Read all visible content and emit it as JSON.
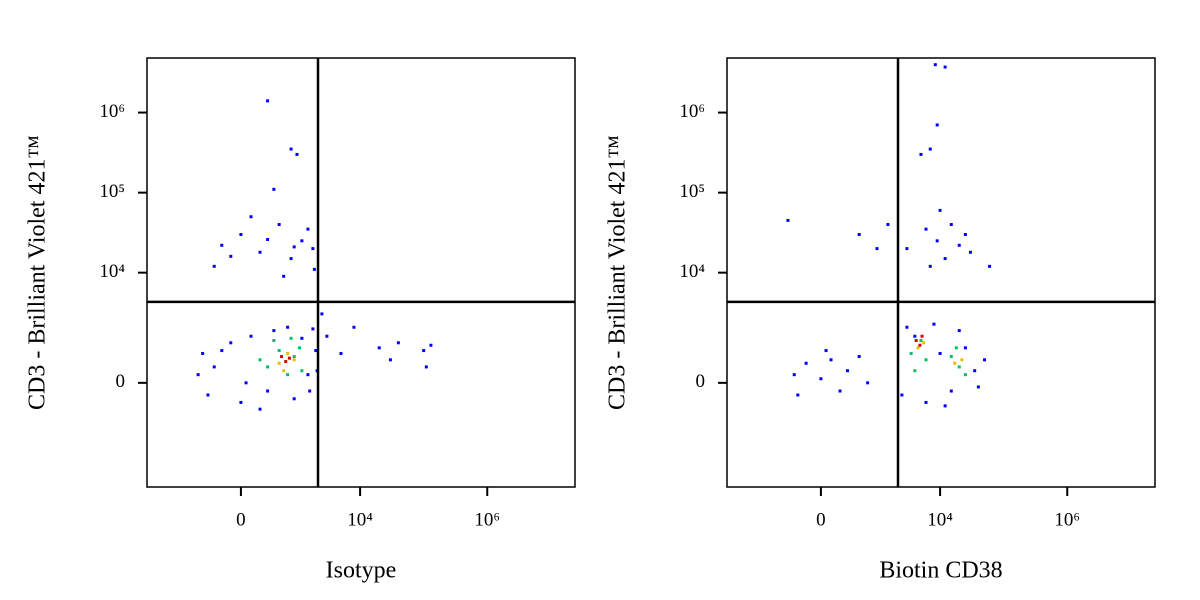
{
  "chart_data": [
    {
      "type": "scatter",
      "xlabel": "Isotype",
      "ylabel": "CD3 - Brilliant Violet 421™",
      "scale": "biexponential",
      "xlim": [
        -4000,
        24000000
      ],
      "ylim": [
        -8400,
        4800000
      ],
      "xticks": [
        0,
        {
          "value": 10000,
          "label": "10⁴"
        },
        {
          "value": 1000000,
          "label": "10⁶"
        }
      ],
      "yticks": [
        0,
        {
          "value": 10000,
          "label": "10⁴"
        },
        {
          "value": 100000,
          "label": "10⁵"
        },
        {
          "value": 1000000,
          "label": "10⁶"
        }
      ],
      "gates": {
        "x": 2170,
        "y": 4290
      },
      "series": [
        {
          "color": "#0000ff",
          "x": [
            -600,
            -400,
            -200,
            0,
            100,
            200,
            400,
            900,
            1500,
            2000,
            1800,
            -500,
            300,
            1200,
            -300,
            700,
            1600,
            2100,
            50,
            -100,
            -300,
            0,
            200,
            500,
            800,
            1200,
            1800,
            100,
            -200,
            600,
            1500,
            300,
            900,
            1900,
            -100,
            3000,
            5000,
            20000,
            30000,
            40000,
            100000,
            110000,
            130000,
            2500,
            8000,
            300,
            800,
            1000,
            400
          ],
          "y": [
            200,
            -300,
            900,
            -500,
            1500,
            -700,
            1800,
            -400,
            200,
            900,
            1900,
            800,
            -200,
            1400,
            400,
            2000,
            -200,
            300,
            0,
            1200,
            12000,
            30000,
            18000,
            40000,
            15000,
            25000,
            20000,
            50000,
            22000,
            9000,
            35000,
            26000,
            21000,
            11000,
            16000,
            1500,
            800,
            1000,
            600,
            1200,
            900,
            400,
            1100,
            3000,
            2000,
            1400000,
            350000,
            300000,
            110000
          ]
        },
        {
          "color": "#00c060",
          "x": [
            300,
            500,
            700,
            900,
            1100,
            400,
            200,
            800,
            1200
          ],
          "y": [
            400,
            900,
            200,
            700,
            1000,
            1300,
            600,
            1400,
            300
          ]
        },
        {
          "color": "#e8c000",
          "x": [
            500,
            700,
            600,
            900
          ],
          "y": [
            500,
            800,
            300,
            600
          ]
        },
        {
          "color": "#e00000",
          "x": [
            650,
            750,
            550
          ],
          "y": [
            550,
            650,
            700
          ]
        }
      ]
    },
    {
      "type": "scatter",
      "xlabel": "Biotin CD38",
      "ylabel": "CD3 - Brilliant Violet 421™",
      "scale": "biexponential",
      "xlim": [
        -4000,
        24000000
      ],
      "ylim": [
        -8400,
        4800000
      ],
      "xticks": [
        0,
        {
          "value": 10000,
          "label": "10⁴"
        },
        {
          "value": 1000000,
          "label": "10⁶"
        }
      ],
      "yticks": [
        0,
        {
          "value": 10000,
          "label": "10⁴"
        },
        {
          "value": 100000,
          "label": "10⁵"
        },
        {
          "value": 1000000,
          "label": "10⁶"
        }
      ],
      "gates": {
        "x": 2170,
        "y": 4290
      },
      "series": [
        {
          "color": "#0000ff",
          "x": [
            -300,
            -150,
            0,
            100,
            200,
            300,
            500,
            700,
            -250,
            50,
            2500,
            4000,
            6000,
            10000,
            15000,
            25000,
            35000,
            50000,
            3000,
            8000,
            20000,
            12000,
            40000,
            3000,
            6000,
            9000,
            12000,
            15000,
            20000,
            7000,
            25000,
            1000,
            500,
            1500,
            10000,
            30000,
            60000,
            8400,
            12000,
            9000,
            7000,
            5000,
            -400
          ],
          "y": [
            200,
            500,
            100,
            600,
            -200,
            300,
            700,
            0,
            -300,
            900,
            -300,
            1500,
            -500,
            800,
            -200,
            1000,
            300,
            600,
            2000,
            2200,
            1800,
            -600,
            -100,
            20000,
            35000,
            25000,
            15000,
            40000,
            22000,
            12000,
            30000,
            20000,
            30000,
            40000,
            60000,
            18000,
            12000,
            3960000,
            3700000,
            700000,
            350000,
            300000,
            45000
          ]
        },
        {
          "color": "#00c060",
          "x": [
            3500,
            5000,
            6000,
            15000,
            20000,
            25000,
            4000,
            18000
          ],
          "y": [
            800,
            1300,
            600,
            700,
            400,
            200,
            300,
            1000
          ]
        },
        {
          "color": "#e8c000",
          "x": [
            4500,
            5500,
            17000,
            22000
          ],
          "y": [
            1000,
            1200,
            500,
            600
          ]
        },
        {
          "color": "#e00000",
          "x": [
            4800,
            5200,
            4200
          ],
          "y": [
            1100,
            1500,
            1300
          ]
        }
      ]
    }
  ]
}
